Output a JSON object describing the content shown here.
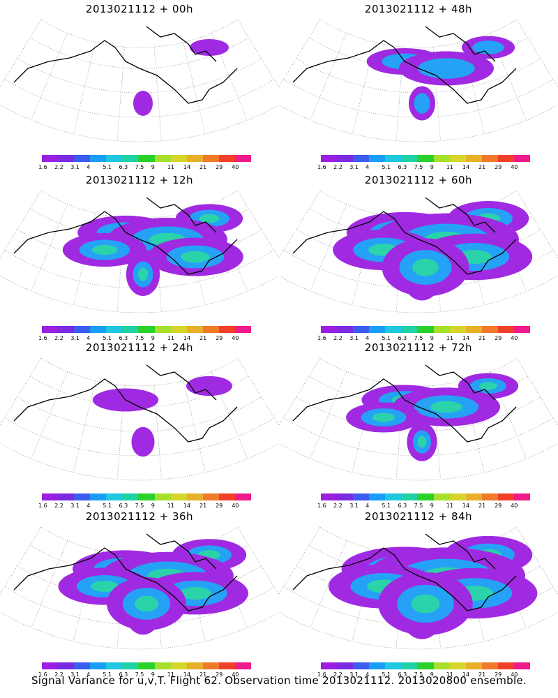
{
  "panels": [
    {
      "title": "2013021112 + 00h"
    },
    {
      "title": "2013021112 + 48h"
    },
    {
      "title": "2013021112 + 12h"
    },
    {
      "title": "2013021112 + 60h"
    },
    {
      "title": "2013021112 + 24h"
    },
    {
      "title": "2013021112 + 72h"
    },
    {
      "title": "2013021112 + 36h"
    },
    {
      "title": "2013021112 + 84h"
    }
  ],
  "colorbar": {
    "labels": [
      "1.6",
      "2.2",
      "3.1",
      "4",
      "5.1",
      "6.3",
      "7.5",
      "9",
      "11",
      "14",
      "21",
      "29",
      "40"
    ],
    "colors": [
      "#9b1fe0",
      "#7a2be0",
      "#3b5cf0",
      "#1a9ef5",
      "#1fc7e0",
      "#1fd1a6",
      "#2ad12a",
      "#a6e02a",
      "#d6d62a",
      "#e8b02a",
      "#f07a2a",
      "#f0402a",
      "#f01a8a"
    ]
  },
  "caption": "Signal Variance for u,v,T. Flight 62. Observation time 2013021112. 2013020800 ensemble."
}
